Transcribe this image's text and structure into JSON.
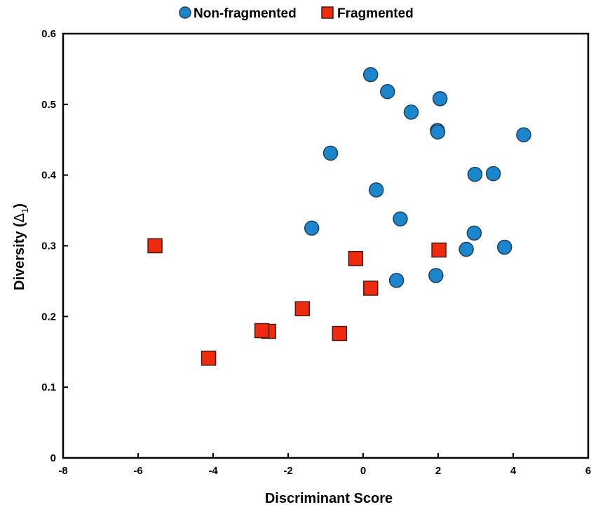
{
  "chart_data": {
    "type": "scatter",
    "xlabel": "Discriminant Score",
    "ylabel_main": "Diversity (",
    "ylabel_symbol": "Δ",
    "ylabel_sub": "1",
    "ylabel_close": ")",
    "xlim": [
      -8,
      6
    ],
    "ylim": [
      0,
      0.6
    ],
    "xticks": [
      -8,
      -6,
      -4,
      -2,
      0,
      2,
      4,
      6
    ],
    "xtick_labels": [
      "-8",
      "-6",
      "-4",
      "-2",
      "0",
      "2",
      "4",
      "6"
    ],
    "yticks": [
      0,
      0.1,
      0.2,
      0.3,
      0.4,
      0.5,
      0.6
    ],
    "ytick_labels": [
      "0",
      "0.1",
      "0.2",
      "0.3",
      "0.4",
      "0.5",
      "0.6"
    ],
    "grid": false,
    "legend_position": "top-center",
    "series": [
      {
        "name": "Non-fragmented",
        "marker": "circle",
        "color": "#1b86cc",
        "points": [
          [
            0.2,
            0.542
          ],
          [
            0.65,
            0.518
          ],
          [
            2.05,
            0.508
          ],
          [
            1.28,
            0.489
          ],
          [
            1.98,
            0.463
          ],
          [
            1.99,
            0.461
          ],
          [
            4.28,
            0.457
          ],
          [
            -0.87,
            0.431
          ],
          [
            2.98,
            0.401
          ],
          [
            3.47,
            0.402
          ],
          [
            0.35,
            0.379
          ],
          [
            0.99,
            0.338
          ],
          [
            -1.37,
            0.325
          ],
          [
            2.96,
            0.318
          ],
          [
            3.77,
            0.298
          ],
          [
            2.75,
            0.295
          ],
          [
            1.94,
            0.258
          ],
          [
            0.89,
            0.251
          ]
        ]
      },
      {
        "name": "Fragmented",
        "marker": "square",
        "color": "#ee2a0f",
        "points": [
          [
            -5.55,
            0.3
          ],
          [
            2.02,
            0.294
          ],
          [
            -0.2,
            0.282
          ],
          [
            0.2,
            0.24
          ],
          [
            -1.62,
            0.211
          ],
          [
            -2.52,
            0.179
          ],
          [
            -2.7,
            0.18
          ],
          [
            -0.63,
            0.176
          ],
          [
            -4.12,
            0.141
          ]
        ]
      }
    ]
  }
}
